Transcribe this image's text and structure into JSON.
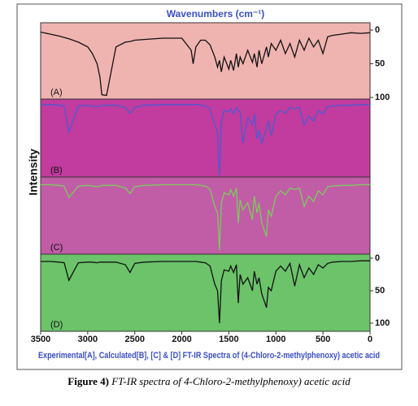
{
  "chart_data": {
    "type": "line",
    "title": "Wavenumbers (cm⁻¹)",
    "ylabel": "Intensity",
    "caption": "Experimental[A], Calculated[B], [C] & [D] FT-IR Spectra of (4-Chloro-2-methylphenoxy) acetic acid",
    "xlim": [
      3500,
      0
    ],
    "xticks": [
      3500,
      3000,
      2500,
      2000,
      1500,
      1000,
      500,
      0
    ],
    "x": [
      3500,
      3400,
      3300,
      3250,
      3200,
      3100,
      3000,
      2950,
      2900,
      2870,
      2850,
      2800,
      2700,
      2600,
      2550,
      2500,
      2400,
      2200,
      2000,
      1900,
      1880,
      1850,
      1800,
      1750,
      1700,
      1650,
      1620,
      1600,
      1580,
      1550,
      1500,
      1480,
      1450,
      1420,
      1400,
      1380,
      1350,
      1300,
      1250,
      1230,
      1200,
      1180,
      1150,
      1100,
      1080,
      1050,
      1000,
      950,
      900,
      850,
      800,
      750,
      700,
      650,
      600,
      550,
      500,
      450,
      400,
      300,
      200,
      100,
      0
    ],
    "series": [
      {
        "name": "(A)",
        "color": "#111111",
        "background": "#f0b4b0",
        "ylim": [
          0,
          100
        ],
        "yticks": [
          0,
          50,
          100
        ],
        "values": [
          3,
          6,
          9,
          11,
          13,
          18,
          25,
          35,
          50,
          70,
          96,
          97,
          25,
          18,
          17,
          15,
          14,
          12,
          12,
          30,
          50,
          25,
          15,
          15,
          22,
          40,
          55,
          45,
          62,
          40,
          58,
          45,
          60,
          35,
          55,
          40,
          50,
          30,
          48,
          35,
          55,
          30,
          50,
          25,
          40,
          20,
          30,
          15,
          35,
          20,
          40,
          15,
          30,
          12,
          25,
          15,
          35,
          10,
          8,
          6,
          4,
          5,
          4
        ]
      },
      {
        "name": "(B)",
        "color": "#4a5bd0",
        "background": "#c23b9e",
        "ylim": [
          0,
          100
        ],
        "values": [
          2,
          2,
          3,
          4,
          40,
          4,
          3,
          4,
          5,
          4,
          3,
          3,
          3,
          6,
          14,
          6,
          3,
          2,
          2,
          2,
          2,
          2,
          3,
          4,
          8,
          30,
          40,
          100,
          25,
          10,
          12,
          8,
          15,
          6,
          10,
          12,
          55,
          20,
          30,
          15,
          50,
          38,
          55,
          35,
          25,
          45,
          15,
          10,
          14,
          6,
          8,
          6,
          30,
          18,
          25,
          10,
          15,
          5,
          4,
          3,
          3,
          2,
          2
        ]
      },
      {
        "name": "(C)",
        "color": "#7ccc5a",
        "background": "#c15ca7",
        "ylim": [
          0,
          100
        ],
        "values": [
          3,
          3,
          4,
          5,
          22,
          5,
          4,
          5,
          6,
          5,
          4,
          4,
          4,
          8,
          16,
          6,
          4,
          3,
          3,
          3,
          3,
          3,
          4,
          5,
          10,
          35,
          45,
          100,
          30,
          15,
          18,
          10,
          20,
          8,
          60,
          25,
          40,
          30,
          55,
          20,
          45,
          30,
          60,
          80,
          40,
          50,
          20,
          12,
          18,
          8,
          10,
          8,
          35,
          20,
          28,
          12,
          18,
          6,
          5,
          4,
          4,
          3,
          3
        ]
      },
      {
        "name": "(D)",
        "color": "#111111",
        "background": "#6cc36a",
        "ylim": [
          0,
          100
        ],
        "yticks": [
          0,
          50,
          100
        ],
        "values": [
          5,
          5,
          6,
          7,
          34,
          7,
          6,
          6,
          7,
          6,
          6,
          6,
          6,
          10,
          22,
          8,
          6,
          5,
          5,
          5,
          5,
          5,
          6,
          7,
          12,
          40,
          50,
          100,
          35,
          18,
          20,
          12,
          22,
          10,
          69,
          25,
          40,
          30,
          50,
          20,
          40,
          30,
          55,
          76,
          45,
          50,
          20,
          12,
          20,
          8,
          43,
          10,
          30,
          15,
          25,
          10,
          15,
          8,
          6,
          5,
          5,
          4,
          4
        ]
      }
    ]
  },
  "figure": {
    "label": "Figure 4)",
    "text": "FT-IR spectra of 4-Chloro-2-methylphenoxy) acetic acid"
  }
}
